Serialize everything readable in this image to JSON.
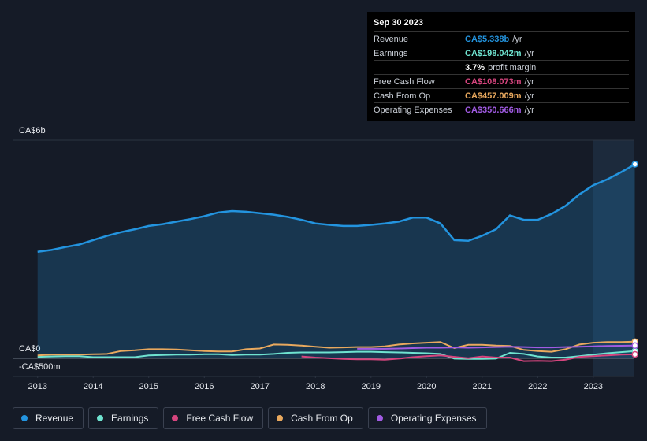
{
  "chart_data": {
    "type": "line",
    "x": [
      2013,
      2013.25,
      2013.5,
      2013.75,
      2014,
      2014.25,
      2014.5,
      2014.75,
      2015,
      2015.25,
      2015.5,
      2015.75,
      2016,
      2016.25,
      2016.5,
      2016.75,
      2017,
      2017.25,
      2017.5,
      2017.75,
      2018,
      2018.25,
      2018.5,
      2018.75,
      2019,
      2019.25,
      2019.5,
      2019.75,
      2020,
      2020.25,
      2020.5,
      2020.75,
      2021,
      2021.25,
      2021.5,
      2021.75,
      2022,
      2022.25,
      2022.5,
      2022.75,
      2023,
      2023.25,
      2023.5,
      2023.75
    ],
    "xlim": [
      2012.55,
      2023.74
    ],
    "xticks": [
      2013,
      2014,
      2015,
      2016,
      2017,
      2018,
      2019,
      2020,
      2021,
      2022,
      2023
    ],
    "ylim": [
      -0.5,
      6
    ],
    "yticks": [
      {
        "value": 6,
        "label": "CA$6b"
      },
      {
        "value": 0,
        "label": "CA$0"
      },
      {
        "value": -0.5,
        "label": "-CA$500m"
      }
    ],
    "series": [
      {
        "name": "Revenue",
        "color": "#2394df",
        "values": [
          2.93,
          2.98,
          3.06,
          3.13,
          3.25,
          3.37,
          3.47,
          3.55,
          3.64,
          3.69,
          3.76,
          3.83,
          3.91,
          4.01,
          4.05,
          4.03,
          3.99,
          3.95,
          3.89,
          3.81,
          3.71,
          3.67,
          3.64,
          3.64,
          3.67,
          3.71,
          3.76,
          3.87,
          3.87,
          3.71,
          3.25,
          3.23,
          3.37,
          3.55,
          3.93,
          3.81,
          3.81,
          3.97,
          4.19,
          4.51,
          4.76,
          4.92,
          5.12,
          5.338
        ]
      },
      {
        "name": "Earnings",
        "color": "#6fe3d0",
        "values": [
          0.04,
          0.05,
          0.06,
          0.06,
          0.03,
          0.03,
          0.03,
          0.03,
          0.08,
          0.09,
          0.1,
          0.1,
          0.11,
          0.11,
          0.09,
          0.1,
          0.1,
          0.12,
          0.15,
          0.16,
          0.16,
          0.16,
          0.17,
          0.18,
          0.18,
          0.17,
          0.16,
          0.15,
          0.14,
          0.12,
          -0.01,
          -0.02,
          -0.02,
          -0.01,
          0.15,
          0.12,
          0.05,
          0.02,
          0.02,
          0.06,
          0.1,
          0.14,
          0.17,
          0.198
        ]
      },
      {
        "name": "Free Cash Flow",
        "color": "#d6457e",
        "values": [
          null,
          null,
          null,
          null,
          null,
          null,
          null,
          null,
          null,
          null,
          null,
          null,
          null,
          null,
          null,
          null,
          null,
          null,
          null,
          0.05,
          0.02,
          0.0,
          -0.02,
          -0.03,
          -0.03,
          -0.04,
          -0.01,
          0.03,
          0.06,
          0.08,
          0.04,
          0.0,
          0.05,
          0.02,
          0.02,
          -0.08,
          -0.07,
          -0.08,
          -0.04,
          0.04,
          0.06,
          0.08,
          0.1,
          0.108
        ]
      },
      {
        "name": "Cash From Op",
        "color": "#e9a95e",
        "values": [
          0.08,
          0.1,
          0.1,
          0.1,
          0.11,
          0.12,
          0.2,
          0.22,
          0.25,
          0.25,
          0.24,
          0.22,
          0.2,
          0.19,
          0.19,
          0.25,
          0.27,
          0.38,
          0.37,
          0.35,
          0.32,
          0.29,
          0.3,
          0.31,
          0.31,
          0.33,
          0.38,
          0.41,
          0.43,
          0.45,
          0.28,
          0.37,
          0.37,
          0.35,
          0.34,
          0.23,
          0.2,
          0.18,
          0.25,
          0.38,
          0.43,
          0.45,
          0.45,
          0.457
        ]
      },
      {
        "name": "Operating Expenses",
        "color": "#a15be3",
        "values": [
          null,
          null,
          null,
          null,
          null,
          null,
          null,
          null,
          null,
          null,
          null,
          null,
          null,
          null,
          null,
          null,
          null,
          null,
          null,
          null,
          null,
          null,
          null,
          0.26,
          0.26,
          0.26,
          0.27,
          0.28,
          0.29,
          0.29,
          0.3,
          0.29,
          0.3,
          0.31,
          0.32,
          0.31,
          0.3,
          0.3,
          0.31,
          0.32,
          0.33,
          0.34,
          0.345,
          0.351
        ]
      }
    ]
  },
  "tooltip": {
    "date": "Sep 30 2023",
    "rows": [
      {
        "label": "Revenue",
        "value": "CA$5.338b",
        "unit": "/yr"
      },
      {
        "label": "Earnings",
        "value": "CA$198.042m",
        "unit": "/yr"
      },
      {
        "label": "",
        "value": "3.7%",
        "unit": "profit margin"
      },
      {
        "label": "Free Cash Flow",
        "value": "CA$108.073m",
        "unit": "/yr"
      },
      {
        "label": "Cash From Op",
        "value": "CA$457.009m",
        "unit": "/yr"
      },
      {
        "label": "Operating Expenses",
        "value": "CA$350.666m",
        "unit": "/yr"
      }
    ]
  }
}
